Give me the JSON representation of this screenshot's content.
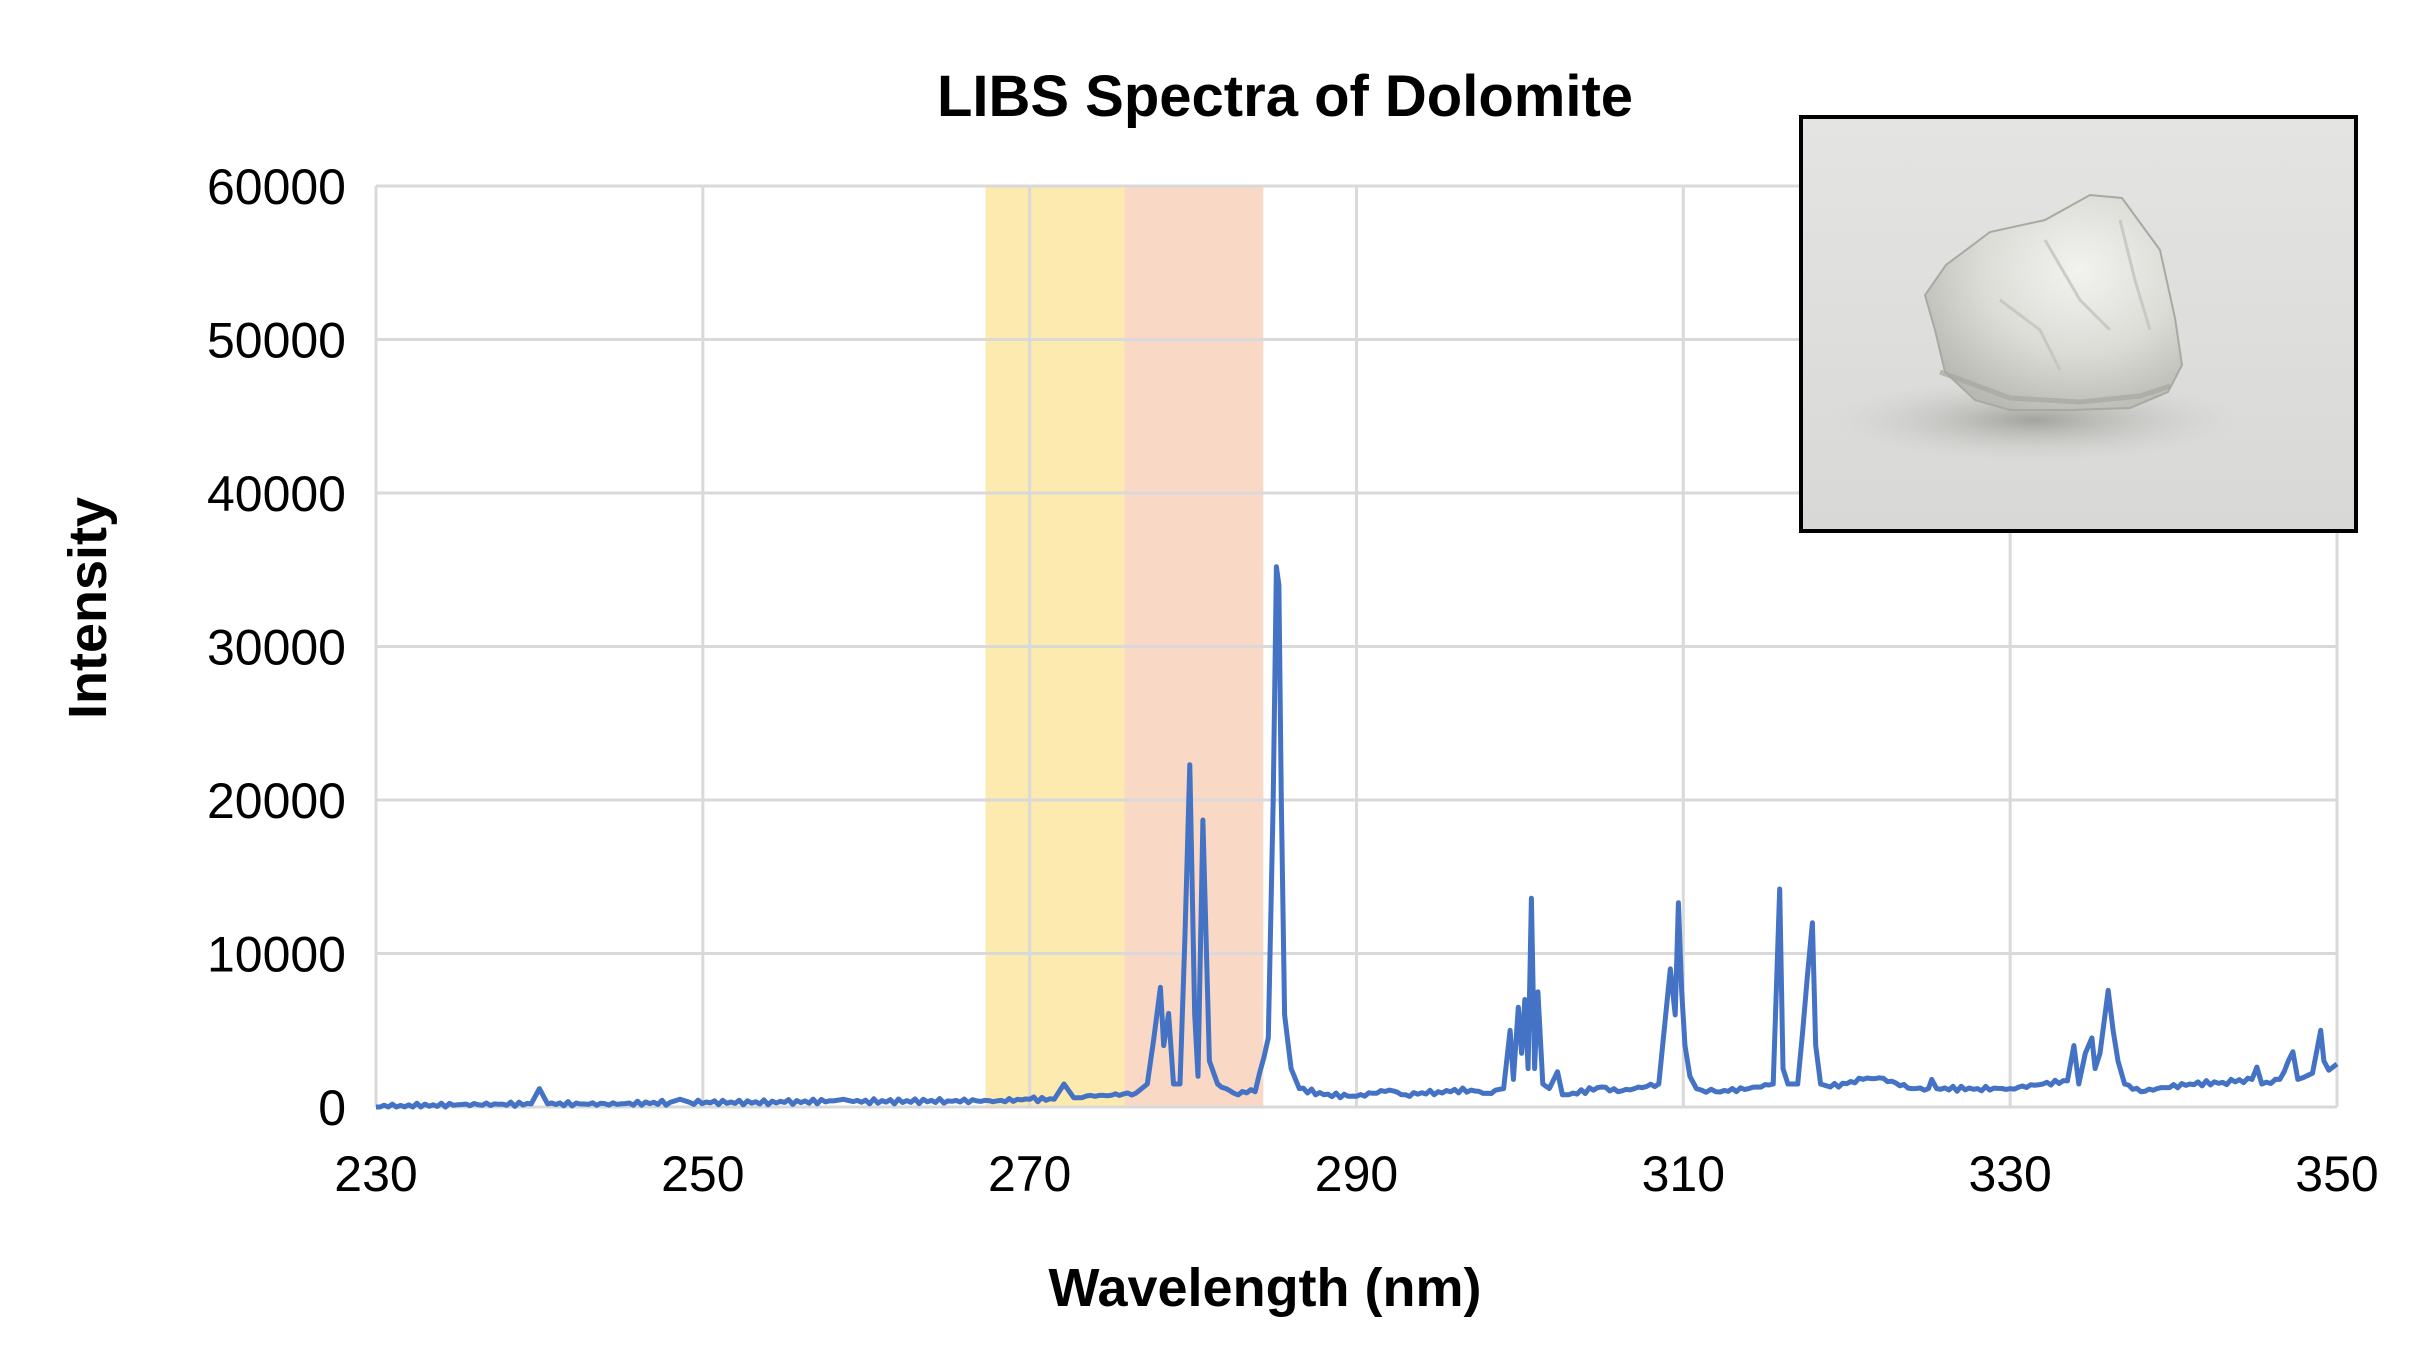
{
  "chart_data": {
    "type": "line",
    "title": "LIBS Spectra of Dolomite",
    "xlabel": "Wavelength (nm)",
    "ylabel": "Intensity",
    "xlim": [
      230,
      350
    ],
    "ylim": [
      0,
      60000
    ],
    "x_ticks": [
      230,
      250,
      270,
      290,
      310,
      330,
      350
    ],
    "y_ticks": [
      0,
      10000,
      20000,
      30000,
      40000,
      50000,
      60000
    ],
    "x_tick_labels": [
      "230",
      "250",
      "270",
      "290",
      "310",
      "330",
      "350"
    ],
    "y_tick_labels": [
      "0",
      "10000",
      "20000",
      "30000",
      "40000",
      "50000",
      "60000"
    ],
    "grid": true,
    "legend": "none",
    "shaded_regions": [
      {
        "x_start": 267.3,
        "x_end": 275.8,
        "color": "#fdeaaf"
      },
      {
        "x_start": 275.8,
        "x_end": 284.3,
        "color": "#f9d9c6"
      }
    ],
    "series": [
      {
        "color": "#4472c4",
        "x": [
          230,
          235,
          239.5,
          240.0,
          240.5,
          245,
          248,
          248.6,
          249.2,
          255,
          258,
          258.6,
          259.2,
          265,
          268,
          270,
          271.5,
          272.1,
          272.7,
          274,
          276.5,
          277.2,
          277.6,
          278.0,
          278.2,
          278.5,
          278.8,
          279.2,
          279.5,
          279.8,
          280.1,
          280.3,
          280.6,
          281.0,
          281.5,
          282.5,
          283.8,
          284.6,
          284.9,
          285.1,
          285.25,
          285.4,
          285.6,
          286.0,
          286.5,
          288,
          290,
          292,
          293,
          295,
          297,
          298,
          299.0,
          299.4,
          299.6,
          299.9,
          300.1,
          300.3,
          300.5,
          300.7,
          300.9,
          301.1,
          301.4,
          301.8,
          302.3,
          302.6,
          303,
          305,
          306,
          308.5,
          309.2,
          309.5,
          309.7,
          309.9,
          310.1,
          310.4,
          310.8,
          312,
          314,
          315.5,
          315.9,
          316.1,
          316.4,
          317,
          317.9,
          318.1,
          318.4,
          319,
          321,
          322,
          324,
          325,
          325.2,
          325.5,
          328,
          330,
          332,
          333.5,
          333.9,
          334.2,
          334.6,
          335.0,
          335.2,
          335.5,
          336.0,
          336.3,
          336.6,
          337.0,
          338,
          339,
          341,
          343,
          344.8,
          345.1,
          345.4,
          346.5,
          347.3,
          347.6,
          347.9,
          348.5,
          349.0,
          349.2,
          349.5,
          350
        ],
        "values": [
          0,
          150,
          200,
          1200,
          200,
          200,
          300,
          500,
          300,
          300,
          400,
          500,
          350,
          400,
          400,
          500,
          500,
          1500,
          600,
          700,
          900,
          1500,
          4500,
          7800,
          4000,
          6100,
          1500,
          1500,
          11000,
          22300,
          6000,
          2000,
          18700,
          3000,
          1500,
          900,
          1000,
          4500,
          20000,
          35200,
          34000,
          20000,
          6000,
          2500,
          1200,
          800,
          700,
          1100,
          800,
          1000,
          1100,
          900,
          1200,
          5000,
          1800,
          6500,
          3500,
          7000,
          2500,
          13600,
          2500,
          7500,
          1500,
          1200,
          2300,
          800,
          800,
          1300,
          1000,
          1500,
          9000,
          6000,
          13300,
          7500,
          4000,
          2000,
          1200,
          1000,
          1200,
          1500,
          14200,
          2500,
          1500,
          1500,
          12000,
          4000,
          1500,
          1300,
          1800,
          1900,
          1200,
          1200,
          1800,
          1200,
          1200,
          1200,
          1500,
          1700,
          4000,
          1500,
          3500,
          4500,
          2500,
          3500,
          7600,
          5000,
          3000,
          1500,
          1000,
          1200,
          1500,
          1600,
          1800,
          2600,
          1500,
          1800,
          3600,
          1800,
          1900,
          2200,
          5000,
          3000,
          2400,
          2800
        ]
      }
    ]
  },
  "inset": {
    "photo": "dolomite-rock-photo",
    "border_color": "#000000"
  }
}
